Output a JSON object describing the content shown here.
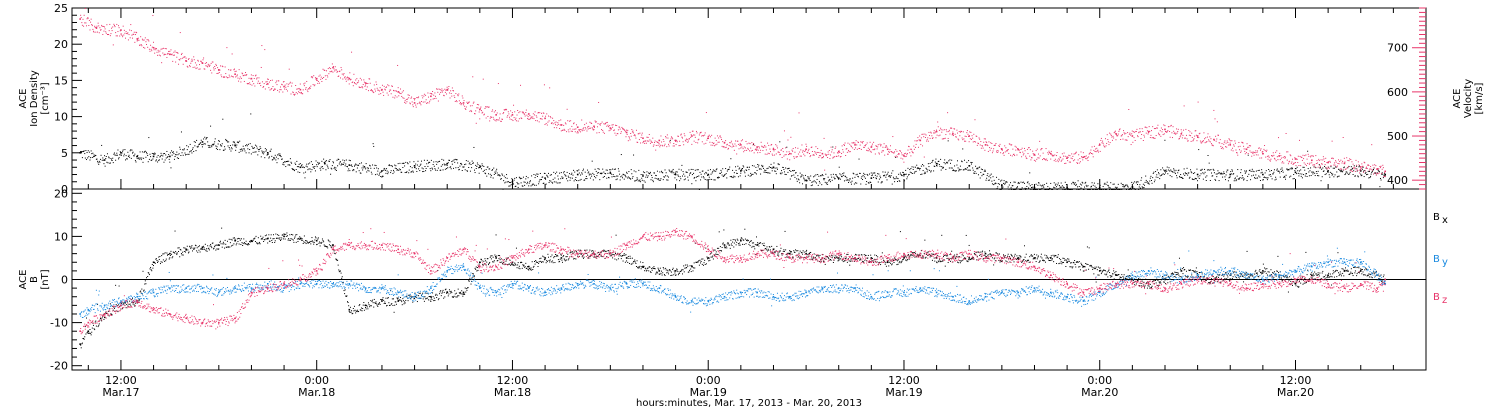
{
  "colors": {
    "black": "#000000",
    "pink": "#e8356a",
    "blue": "#1a8ae0"
  },
  "chart_data": [
    {
      "type": "scatter",
      "panel": "plasma",
      "ylabel_lines": [
        "ACE",
        "Ion Density",
        "[cm⁻³]"
      ],
      "ylim": [
        0,
        25
      ],
      "yticks": [
        0,
        5,
        10,
        15,
        20,
        25
      ],
      "y2label_lines": [
        "ACE",
        "Velocity",
        "[km/s]"
      ],
      "y2lim": [
        380,
        790
      ],
      "y2ticks": [
        400,
        500,
        600,
        700
      ],
      "xlim": [
        9,
        92
      ],
      "series": [
        {
          "axis": "left",
          "color": "#000000",
          "x": [
            9.5,
            11,
            12,
            13,
            14,
            15,
            17,
            19,
            21,
            23,
            24.5,
            26,
            28,
            30,
            32,
            34,
            36,
            38,
            40,
            42,
            44,
            46,
            48,
            50,
            52,
            54,
            56,
            58,
            60,
            62,
            64,
            66,
            68,
            70,
            72,
            74,
            76,
            78,
            80,
            82,
            84,
            86,
            88,
            89.5
          ],
          "y": [
            5,
            4,
            5,
            4.5,
            4.5,
            4.5,
            6.5,
            6,
            5,
            3,
            3.5,
            3.3,
            2.5,
            3.2,
            3.5,
            3,
            1,
            1.5,
            2,
            2.2,
            1.8,
            2,
            2,
            2.5,
            3,
            1.2,
            1.5,
            1.5,
            2,
            3.5,
            3.2,
            0.5,
            0.2,
            0.2,
            0.2,
            0.3,
            2.5,
            2,
            2,
            2,
            2.3,
            2.5,
            2.5,
            2
          ]
        },
        {
          "axis": "right",
          "color": "#e8356a",
          "x": [
            9.5,
            10.5,
            12,
            13,
            14,
            15,
            16,
            17,
            18,
            19,
            20,
            21,
            22,
            23,
            24,
            25,
            26,
            27,
            28,
            29,
            30,
            31,
            32,
            33,
            34,
            35,
            36,
            37,
            38,
            39,
            40,
            41,
            42,
            43,
            44,
            45,
            46,
            47,
            48,
            49,
            50,
            51,
            52,
            53,
            54,
            55,
            56,
            57,
            58,
            59,
            60,
            61,
            62,
            63,
            64,
            65,
            66,
            67,
            68,
            69,
            70,
            71,
            72,
            73,
            74,
            75,
            76,
            77,
            78,
            79,
            80,
            81,
            82,
            83,
            84,
            85,
            86,
            87,
            88,
            89,
            89.5
          ],
          "y": [
            765,
            745,
            740,
            720,
            700,
            685,
            670,
            665,
            650,
            640,
            630,
            618,
            612,
            605,
            630,
            655,
            630,
            620,
            605,
            600,
            575,
            590,
            605,
            575,
            560,
            548,
            548,
            550,
            540,
            525,
            520,
            522,
            518,
            508,
            495,
            490,
            490,
            500,
            495,
            485,
            480,
            475,
            470,
            460,
            470,
            460,
            465,
            480,
            475,
            470,
            455,
            490,
            510,
            505,
            500,
            480,
            470,
            470,
            458,
            460,
            450,
            452,
            480,
            505,
            500,
            510,
            515,
            505,
            500,
            492,
            480,
            470,
            460,
            455,
            448,
            445,
            440,
            438,
            430,
            425,
            420
          ]
        }
      ]
    },
    {
      "type": "scatter",
      "panel": "magnetic-field",
      "ylabel_lines": [
        "ACE",
        "B",
        "[nT]"
      ],
      "ylim": [
        -21,
        21
      ],
      "yticks": [
        -20,
        -10,
        0,
        10,
        20
      ],
      "xlim": [
        9,
        92
      ],
      "legend": {
        "placement": "right",
        "entries": [
          "B",
          "B",
          "B"
        ],
        "subscripts": [
          "x",
          "y",
          "z"
        ]
      },
      "series": [
        {
          "axis": "left",
          "color": "#000000",
          "x": [
            9.5,
            10,
            11,
            12,
            13,
            14,
            15,
            16,
            17,
            18,
            19,
            20,
            21,
            22,
            23,
            24,
            25,
            26,
            27,
            28,
            29,
            30,
            31,
            32,
            33,
            34,
            35,
            36,
            37,
            38,
            39,
            40,
            41,
            42,
            43,
            44,
            45,
            46,
            47,
            48,
            49,
            50,
            51,
            52,
            53,
            54,
            55,
            56,
            57,
            58,
            59,
            60,
            61,
            62,
            63,
            64,
            65,
            66,
            67,
            68,
            69,
            70,
            71,
            72,
            73,
            74,
            75,
            76,
            77,
            78,
            79,
            80,
            81,
            82,
            83,
            84,
            85,
            86,
            87,
            88,
            89,
            89.5
          ],
          "y": [
            -15,
            -12,
            -8,
            -6,
            -5,
            4,
            6,
            7,
            7.5,
            8,
            9,
            9,
            9.5,
            10,
            9.5,
            9,
            8,
            -7,
            -6,
            -5,
            -5,
            -4,
            -4,
            -3,
            -3,
            4,
            5,
            4,
            3,
            5,
            5,
            6,
            6,
            6,
            5,
            3,
            2,
            2,
            3,
            5,
            8,
            9,
            8,
            7,
            6,
            6,
            5,
            5,
            5,
            5,
            4,
            5,
            6,
            5,
            5,
            5,
            6,
            5,
            5,
            5,
            5,
            4,
            3,
            2,
            1,
            0,
            -1,
            0,
            2,
            1,
            0,
            1,
            1,
            2,
            1,
            -1,
            1,
            1,
            2,
            2,
            1,
            0
          ]
        },
        {
          "axis": "left",
          "color": "#1a8ae0",
          "x": [
            9.5,
            10,
            11,
            12,
            13,
            14,
            15,
            16,
            17,
            18,
            19,
            20,
            21,
            22,
            23,
            24,
            25,
            26,
            27,
            28,
            29,
            30,
            31,
            32,
            33,
            34,
            35,
            36,
            37,
            38,
            39,
            40,
            41,
            42,
            43,
            44,
            45,
            46,
            47,
            48,
            49,
            50,
            51,
            52,
            53,
            54,
            55,
            56,
            57,
            58,
            59,
            60,
            61,
            62,
            63,
            64,
            65,
            66,
            67,
            68,
            69,
            70,
            71,
            72,
            73,
            74,
            75,
            76,
            77,
            78,
            79,
            80,
            81,
            82,
            83,
            84,
            85,
            86,
            87,
            88,
            89,
            89.5
          ],
          "y": [
            -8,
            -7,
            -6,
            -5,
            -4,
            -3,
            -2,
            -2,
            -2,
            -3,
            -2,
            -2,
            -1,
            -2,
            -1,
            -1,
            -1,
            -1,
            -2,
            -2,
            -3,
            -4,
            -2,
            2,
            3,
            -2,
            -3,
            -1,
            -2,
            -3,
            -2,
            -1,
            -1,
            -2,
            -1,
            -1,
            -2,
            -4,
            -5,
            -5,
            -4,
            -3,
            -3,
            -4,
            -4,
            -3,
            -2,
            -2,
            -2,
            -4,
            -3,
            -3,
            -2,
            -3,
            -4,
            -5,
            -4,
            -3,
            -3,
            -2,
            -3,
            -4,
            -5,
            -3,
            -1,
            1,
            2,
            1,
            0,
            1,
            2,
            2,
            1,
            0,
            1,
            2,
            3,
            4,
            4,
            4,
            1,
            -1
          ]
        },
        {
          "axis": "left",
          "color": "#e8356a",
          "x": [
            9.5,
            10,
            11,
            12,
            13,
            14,
            15,
            16,
            17,
            18,
            19,
            20,
            21,
            22,
            23,
            24,
            25,
            26,
            27,
            28,
            29,
            30,
            31,
            32,
            33,
            34,
            35,
            36,
            37,
            38,
            39,
            40,
            41,
            42,
            43,
            44,
            45,
            46,
            47,
            48,
            49,
            50,
            51,
            52,
            53,
            54,
            55,
            56,
            57,
            58,
            59,
            60,
            61,
            62,
            63,
            64,
            65,
            66,
            67,
            68,
            69,
            70,
            71,
            72,
            73,
            74,
            75,
            76,
            77,
            78,
            79,
            80,
            81,
            82,
            83,
            84,
            85,
            86,
            87,
            88,
            89,
            89.5
          ],
          "y": [
            -12,
            -10,
            -8,
            -6,
            -5,
            -7,
            -8,
            -9,
            -10,
            -10,
            -9,
            -3,
            -2,
            -1,
            0,
            2,
            7,
            8,
            8,
            8,
            7,
            6,
            2,
            5,
            7,
            3,
            3,
            5,
            7,
            8,
            7,
            6,
            6,
            6,
            8,
            10,
            10,
            11,
            10,
            7,
            5,
            5,
            6,
            6,
            5,
            5,
            5,
            6,
            5,
            4,
            5,
            6,
            6,
            6,
            5,
            6,
            5,
            5,
            4,
            3,
            1,
            -1,
            -3,
            -2,
            -1,
            -1,
            -1,
            -2,
            -1,
            0,
            0,
            -1,
            -2,
            -1,
            -1,
            0,
            0,
            -1,
            -2,
            -1,
            -2,
            0
          ]
        }
      ]
    }
  ],
  "x_axis": {
    "ticks": [
      {
        "x": 12,
        "time": "12:00",
        "date": "Mar.17"
      },
      {
        "x": 24,
        "time": "0:00",
        "date": "Mar.18"
      },
      {
        "x": 36,
        "time": "12:00",
        "date": "Mar.18"
      },
      {
        "x": 48,
        "time": "0:00",
        "date": "Mar.19"
      },
      {
        "x": 60,
        "time": "12:00",
        "date": "Mar.19"
      },
      {
        "x": 72,
        "time": "0:00",
        "date": "Mar.20"
      },
      {
        "x": 84,
        "time": "12:00",
        "date": "Mar.20"
      }
    ],
    "label": "hours:minutes, Mar. 17, 2013 - Mar. 20, 2013"
  }
}
